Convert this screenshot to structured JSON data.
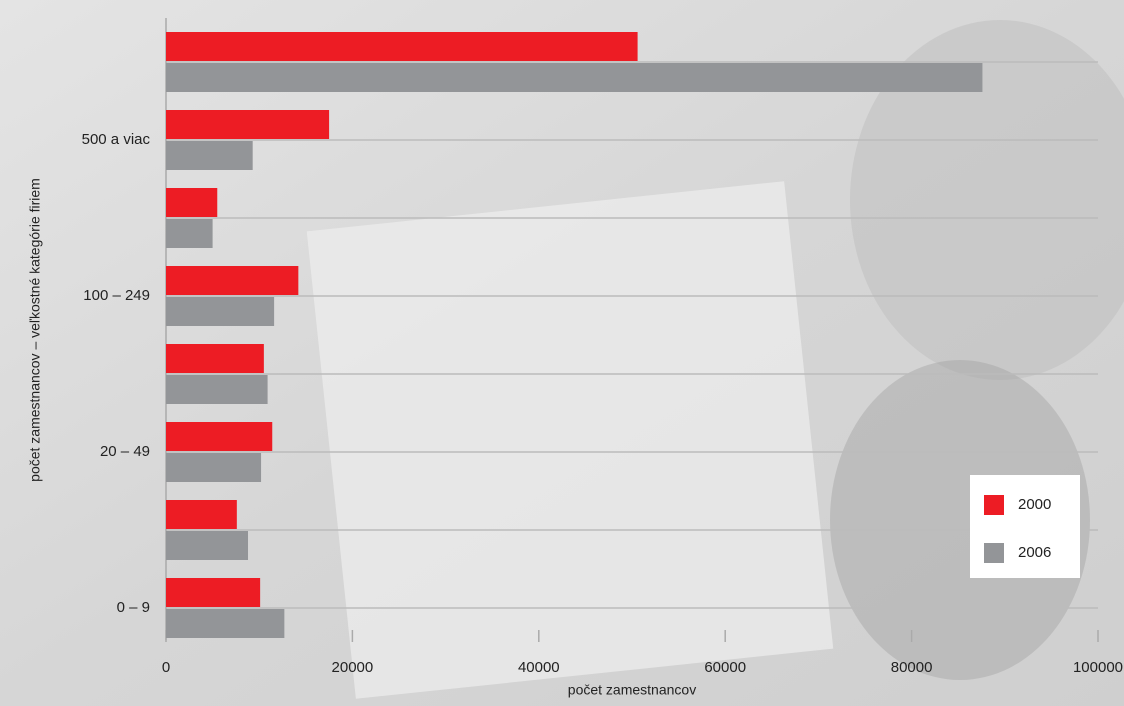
{
  "chart_data": {
    "type": "bar",
    "orientation": "horizontal",
    "x_label": "počet zamestnancov",
    "y_label": "počet zamestnancov – veľkostné kategórie firiem",
    "categories": [
      "0 – 9",
      null,
      "20 – 49",
      null,
      "100 – 249",
      null,
      "500 a viac",
      null
    ],
    "series": [
      {
        "name": "2000",
        "color": "#ed1c24",
        "values": [
          10100,
          7600,
          11400,
          10500,
          14200,
          5500,
          17500,
          50600
        ]
      },
      {
        "name": "2006",
        "color": "#939598",
        "values": [
          12700,
          8800,
          10200,
          10900,
          11600,
          5000,
          9300,
          87600
        ]
      }
    ],
    "xlim": [
      0,
      100000
    ],
    "xticks": [
      0,
      20000,
      40000,
      60000,
      80000,
      100000
    ],
    "legend": "lower right"
  }
}
